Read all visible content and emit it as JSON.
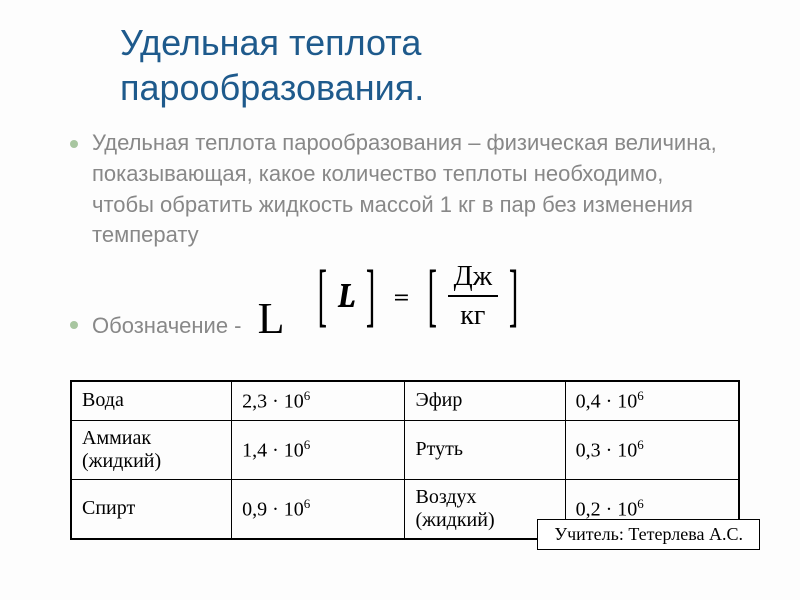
{
  "title_line1": "Удельная теплота",
  "title_line2": "парообразования.",
  "definition": "Удельная теплота парообразования – физическая величина, показывающая, какое количество теплоты необходимо, чтобы обратить жидкость массой 1 кг в пар без изменения температу",
  "notation_label": "Обозначение - ",
  "notation_symbol": "L",
  "formula": {
    "left_symbol": "L",
    "unit_num": "Дж",
    "unit_den": "кг"
  },
  "table": {
    "rows": [
      {
        "label1": "Вода",
        "base1": "2,3",
        "exp1": "6",
        "label2": "Эфир",
        "base2": "0,4",
        "exp2": "6"
      },
      {
        "label1": "Аммиак (жидкий)",
        "base1": "1,4",
        "exp1": "6",
        "label2": "Ртуть",
        "base2": "0,3",
        "exp2": "6"
      },
      {
        "label1": "Спирт",
        "base1": "0,9",
        "exp1": "6",
        "label2": "Воздух (жидкий)",
        "base2": "0,2",
        "exp2": "6"
      }
    ],
    "font_family": "Times New Roman",
    "font_size_pt": 15,
    "border_color": "#000000",
    "background_color": "#ffffff"
  },
  "teacher_label": "Учитель: Тетерлева А.С.",
  "colors": {
    "title": "#1e5a8c",
    "body_text": "#888888",
    "bullet": "#a8c6a0",
    "background": "#fdfdfd",
    "formula_text": "#000000"
  },
  "typography": {
    "title_size_pt": 27,
    "body_size_pt": 17,
    "formula_size_pt": 24,
    "big_L_size_pt": 33
  }
}
